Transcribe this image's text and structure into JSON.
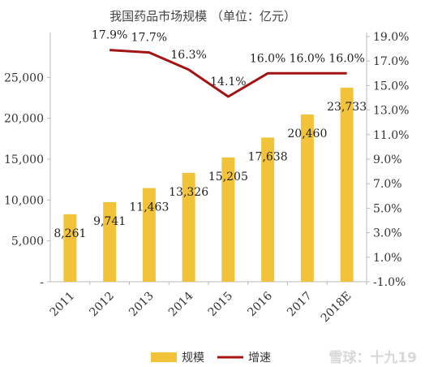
{
  "chart_data": {
    "type": "bar+line",
    "title": "我国药品市场规模 （单位：亿元）",
    "categories": [
      "2011",
      "2012",
      "2013",
      "2014",
      "2015",
      "2016",
      "2017",
      "2018E"
    ],
    "series": [
      {
        "name": "规模",
        "type": "bar",
        "axis": "left",
        "values": [
          8261,
          9741,
          11463,
          13326,
          15205,
          17638,
          20460,
          23733
        ],
        "labels": [
          "8,261",
          "9,741",
          "11,463",
          "13,326",
          "15,205",
          "17,638",
          "20,460",
          "23,733"
        ],
        "color": "#F2C33A"
      },
      {
        "name": "增速",
        "type": "line",
        "axis": "right",
        "values": [
          null,
          17.9,
          17.7,
          16.3,
          14.1,
          16.0,
          16.0,
          16.0
        ],
        "labels": [
          "",
          "17.9%",
          "17.7%",
          "16.3%",
          "14.1%",
          "16.0%",
          "16.0%",
          "16.0%"
        ],
        "color": "#A31414"
      }
    ],
    "y_left": {
      "range": [
        0,
        30000
      ],
      "ticks": [
        0,
        5000,
        10000,
        15000,
        20000,
        25000
      ],
      "tick_labels": [
        "-",
        "5,000",
        "10,000",
        "15,000",
        "20,000",
        "25,000"
      ]
    },
    "y_right": {
      "range": [
        -1.0,
        19.0
      ],
      "ticks": [
        -1,
        1,
        3,
        5,
        7,
        9,
        11,
        13,
        15,
        17,
        19
      ],
      "tick_labels": [
        "-1.0%",
        "1.0%",
        "3.0%",
        "5.0%",
        "7.0%",
        "9.0%",
        "11.0%",
        "13.0%",
        "15.0%",
        "17.0%",
        "19.0%"
      ]
    },
    "legend": {
      "position": "bottom",
      "entries": [
        "规模",
        "增速"
      ]
    },
    "grid": false
  },
  "watermark": "雪球：十九19"
}
